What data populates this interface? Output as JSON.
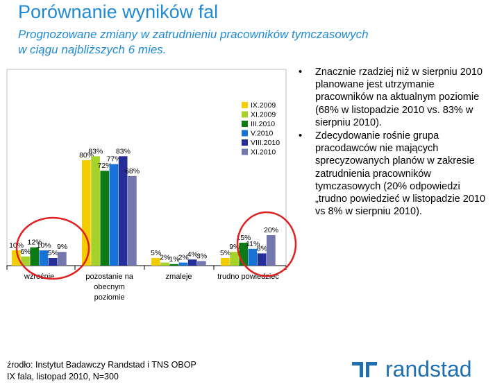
{
  "title": "Porównanie wyników fal",
  "subtitle_line1": "Prognozowane zmiany w zatrudnieniu pracowników tymczasowych",
  "subtitle_line2": "w ciągu najbliższych 6 mies.",
  "bullets": [
    "Znacznie rzadziej niż w sierpniu 2010 planowane jest utrzymanie pracowników na aktualnym poziomie (68% w listopadzie 2010 vs. 83% w sierpniu 2010).",
    "Zdecydowanie rośnie grupa pracodawców nie mających sprecyzowanych planów w zakresie zatrudnienia pracowników tymczasowych (20% odpowiedzi „trudno powiedzieć w listopadzie 2010 vs 8% w sierpniu 2010)."
  ],
  "bullet_char": "•",
  "source_line1": "źrodło: Instytut Badawczy Randstad i TNS OBOP",
  "source_line2": "IX fala, listopad 2010, N=300",
  "logo_text": "randstad",
  "colors": {
    "accent": "#1f8ad3",
    "highlight_circle": "#e02020",
    "logo": "#1f6fb2"
  },
  "chart_data": {
    "type": "bar",
    "categories": [
      [
        "wzrośnie"
      ],
      [
        "pozostanie na",
        "obecnym",
        "poziomie"
      ],
      [
        "zmaleje"
      ],
      [
        "trudno powiedzieć"
      ]
    ],
    "series": [
      {
        "name": "IX.2009",
        "color": "#f5cc00",
        "values": [
          10,
          80,
          5,
          5
        ]
      },
      {
        "name": "XI.2009",
        "color": "#a6d22a",
        "values": [
          6,
          83,
          2,
          9
        ]
      },
      {
        "name": "III.2010",
        "color": "#0d7a16",
        "values": [
          12,
          72,
          1,
          15
        ]
      },
      {
        "name": "V.2010",
        "color": "#1873d8",
        "values": [
          10,
          77,
          2,
          11
        ]
      },
      {
        "name": "VIII.2010",
        "color": "#232e98",
        "values": [
          5,
          83,
          4,
          8
        ]
      },
      {
        "name": "XI.2010",
        "color": "#7478ae",
        "values": [
          9,
          68,
          3,
          20
        ]
      }
    ],
    "value_suffix": "%",
    "ylim": [
      0,
      100
    ],
    "grid": false,
    "legend_position": "top-right",
    "highlighted_categories": [
      "wzrośnie",
      "trudno powiedzieć"
    ]
  }
}
